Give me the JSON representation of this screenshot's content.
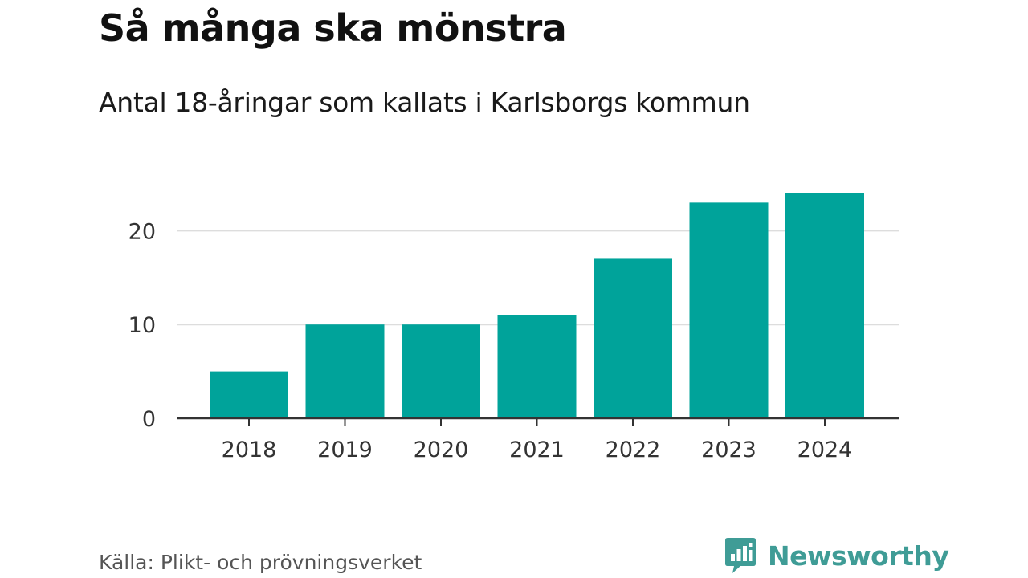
{
  "title": "Så många ska mönstra",
  "subtitle": "Antal 18-åringar som kallats i Karlsborgs kommun",
  "source": "Källa: Plikt- och prövningsverket",
  "brand": {
    "name": "Newsworthy",
    "icon": "newsworthy-logo-icon",
    "color": "#3f9c96"
  },
  "colors": {
    "bar": "#00a39a",
    "grid": "#dddddd",
    "axis": "#333333"
  },
  "chart_data": {
    "type": "bar",
    "title": "Så många ska mönstra",
    "subtitle": "Antal 18-åringar som kallats i Karlsborgs kommun",
    "categories": [
      "2018",
      "2019",
      "2020",
      "2021",
      "2022",
      "2023",
      "2024"
    ],
    "values": [
      5,
      10,
      10,
      11,
      17,
      23,
      24
    ],
    "xlabel": "",
    "ylabel": "",
    "ylim": [
      0,
      24
    ],
    "yticks": [
      0,
      10,
      20
    ],
    "grid": true,
    "legend": "none"
  }
}
